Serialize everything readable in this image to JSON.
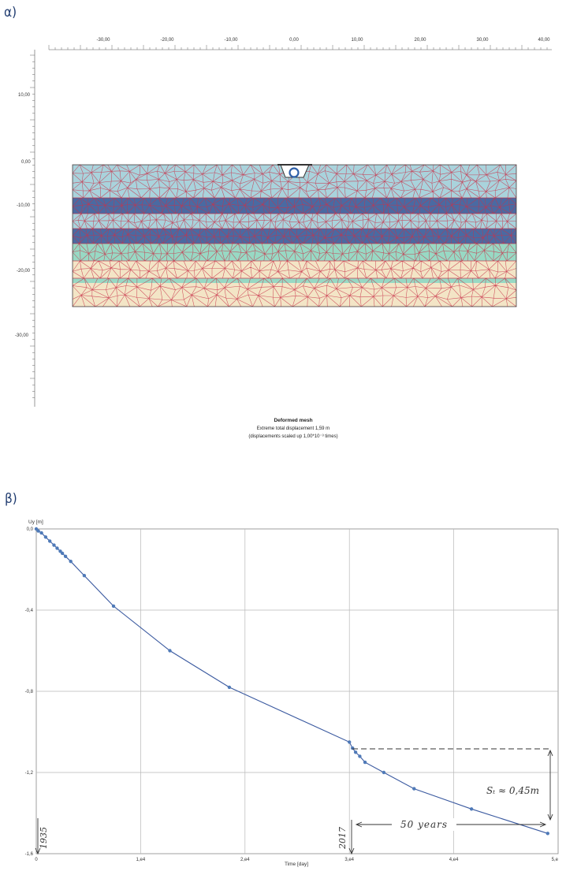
{
  "panel_a": {
    "label": "α)",
    "x_ticks": [
      "-30,00",
      "-20,00",
      "-10,00",
      "0,00",
      "10,00",
      "20,00",
      "30,00",
      "40,00"
    ],
    "y_ticks": [
      "10,00",
      "0,00",
      "-10,00",
      "-20,00",
      "-30,00"
    ],
    "caption_title": "Deformed mesh",
    "caption_line1": "Extreme total displacement 1,59 m",
    "caption_line2": "(displacements scaled up 1,00*10⁻³ times)",
    "colors": {
      "layer_light_blue": "#a9d3dc",
      "layer_dark_blue": "#4a6aa2",
      "layer_green": "#98d9c4",
      "layer_tan": "#f3e5c6",
      "mesh_lines": "#c8324a"
    }
  },
  "panel_b": {
    "label": "β)",
    "chart_data": {
      "type": "line",
      "ylabel": "Uy [m]",
      "xlabel": "Time [day]",
      "x_tick_labels": [
        "0",
        "1,e4",
        "2,e4",
        "3,e4",
        "4,e4",
        "5,e"
      ],
      "y_tick_labels": [
        "0,0",
        "-0,4",
        "-0,8",
        "-1,2",
        "-1,6"
      ],
      "xlim": [
        0,
        50000
      ],
      "ylim": [
        -1.6,
        0
      ],
      "grid": true,
      "x": [
        0,
        200,
        500,
        900,
        1300,
        1700,
        2000,
        2300,
        2500,
        2800,
        3300,
        4600,
        7400,
        12800,
        18500,
        30000,
        30300,
        30600,
        31000,
        31500,
        33300,
        36200,
        41700,
        49000
      ],
      "y": [
        0,
        -0.01,
        -0.02,
        -0.04,
        -0.06,
        -0.08,
        -0.095,
        -0.11,
        -0.12,
        -0.135,
        -0.16,
        -0.23,
        -0.38,
        -0.6,
        -0.78,
        -1.05,
        -1.08,
        -1.1,
        -1.12,
        -1.15,
        -1.2,
        -1.28,
        -1.38,
        -1.5
      ],
      "annotations": {
        "start_year": "1935",
        "end_year": "2017",
        "duration": "50 years",
        "settlement": "Sₜ ≈ 0,45m"
      },
      "colors": {
        "line": "#3b5aa0",
        "marker": "#4f7ab8",
        "grid": "#b8b8b8"
      }
    }
  }
}
